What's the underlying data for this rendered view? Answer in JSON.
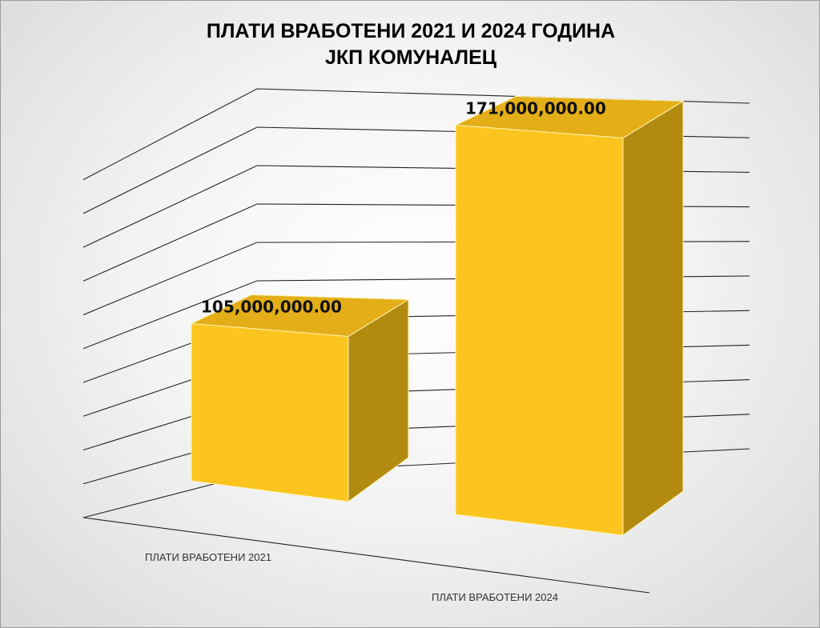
{
  "chart_data": {
    "type": "bar",
    "title": "ПЛАТИ ВРАБОТЕНИ 2021 И 2024 ГОДИНА",
    "subtitle": "ЈКП КОМУНАЛЕЦ",
    "categories": [
      "ПЛАТИ ВРАБОТЕНИ 2021",
      "ПЛАТИ ВРАБОТЕНИ 2024"
    ],
    "values": [
      105000000,
      171000000
    ],
    "data_labels": [
      "105,000,000.00",
      "171,000,000.00"
    ],
    "ylim": [
      0,
      180000000
    ],
    "grid": true,
    "style": "3d-column",
    "colors": {
      "bar_front": "#fcc41f",
      "bar_side": "#b28a10",
      "bar_top": "#e3ae18",
      "gridline": "#222222"
    }
  }
}
